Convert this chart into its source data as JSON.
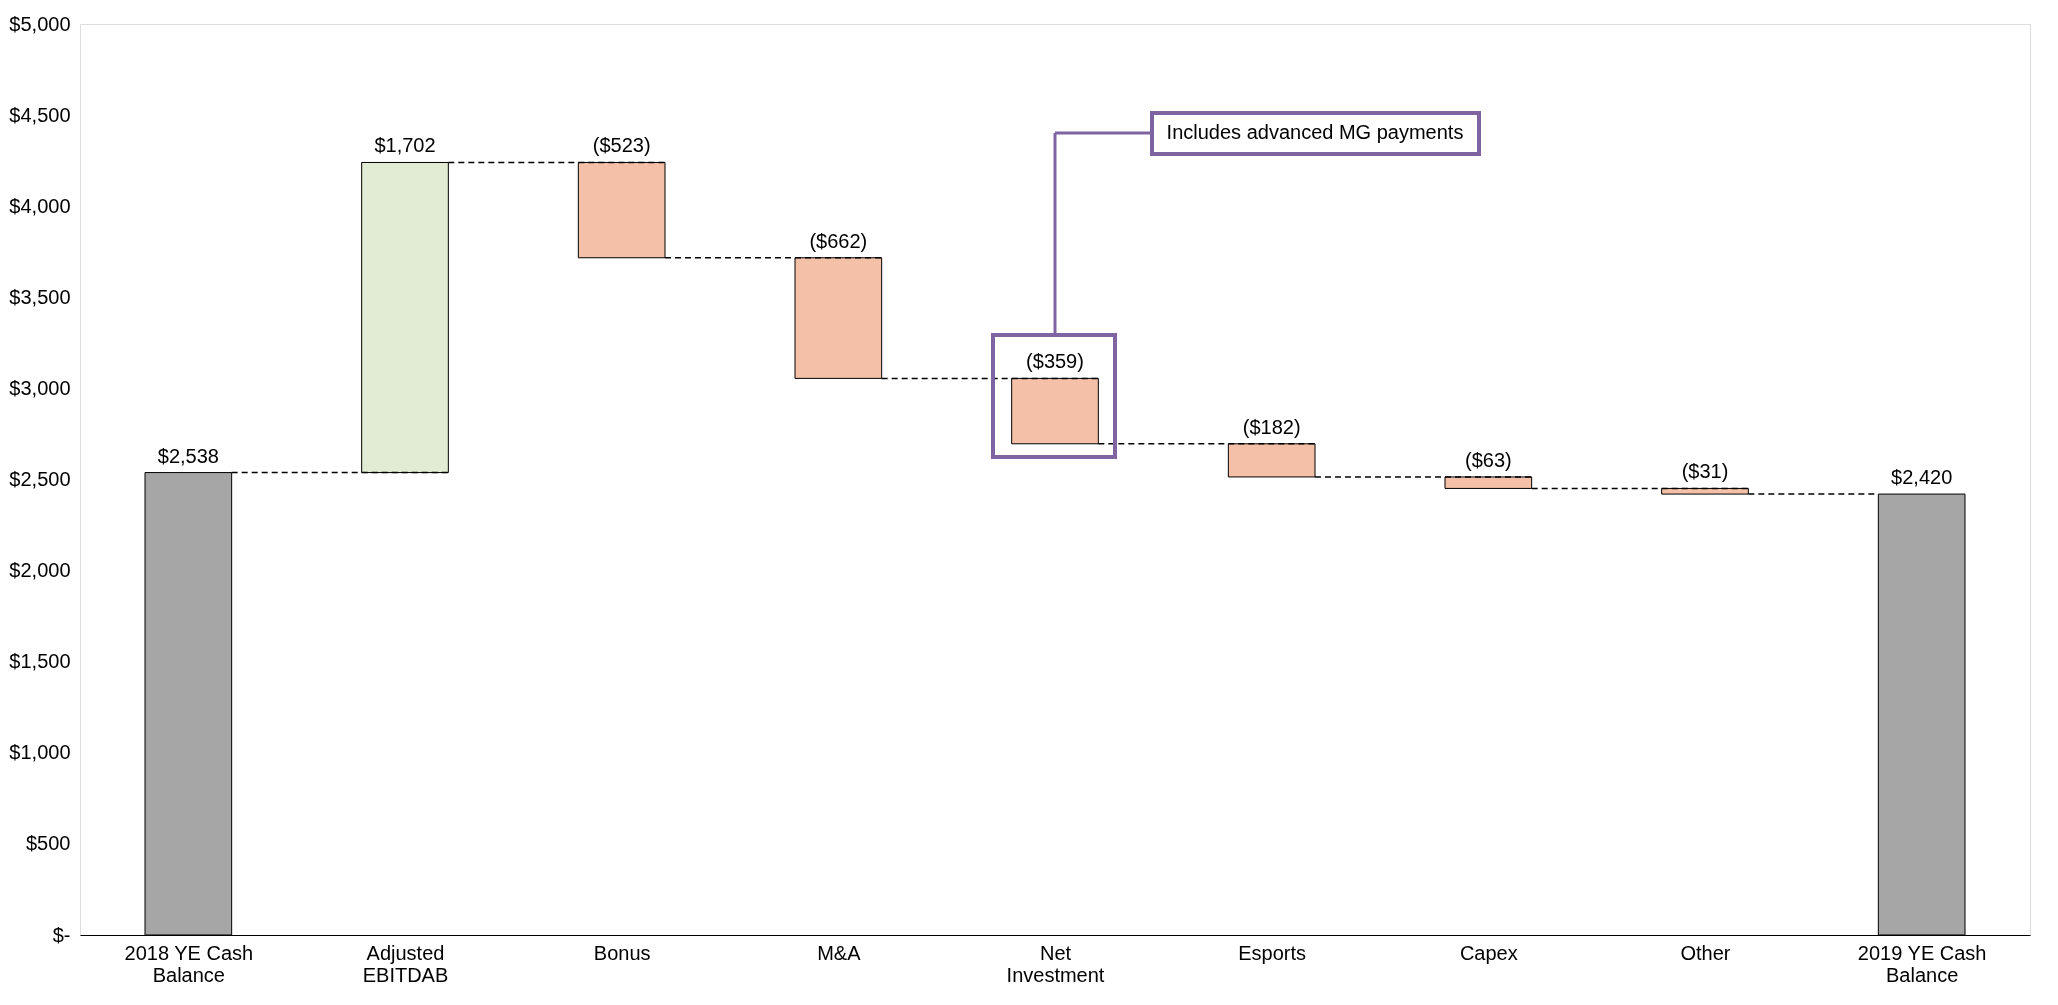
{
  "chart_data": {
    "type": "bar",
    "categories": [
      "2018 YE Cash Balance",
      "Adjusted EBITDAB",
      "Bonus",
      "M&A",
      "Net Investment",
      "Esports",
      "Capex",
      "Other",
      "2019 YE Cash Balance"
    ],
    "values": [
      2538,
      1702,
      -523,
      -662,
      -359,
      -182,
      -63,
      -31,
      2420
    ],
    "base": [
      0,
      2538,
      4240,
      3717,
      3055,
      2696,
      2514,
      2451,
      0
    ],
    "colors": [
      "#a6a6a6",
      "#e2ebd3",
      "#f4c1a8",
      "#f4c1a8",
      "#f4c1a8",
      "#f4c1a8",
      "#f4c1a8",
      "#f4c1a8",
      "#a6a6a6"
    ],
    "value_labels": [
      "$2,538",
      "$1,702",
      "($523)",
      "($662)",
      "($359)",
      "($182)",
      "($63)",
      "($31)",
      "$2,420"
    ],
    "ylim": [
      0,
      5000
    ],
    "yticks": [
      {
        "value": 0,
        "label": "$-"
      },
      {
        "value": 500,
        "label": "$500"
      },
      {
        "value": 1000,
        "label": "$1,000"
      },
      {
        "value": 1500,
        "label": "$1,500"
      },
      {
        "value": 2000,
        "label": "$2,000"
      },
      {
        "value": 2500,
        "label": "$2,500"
      },
      {
        "value": 3000,
        "label": "$3,000"
      },
      {
        "value": 3500,
        "label": "$3,500"
      },
      {
        "value": 4000,
        "label": "$4,000"
      },
      {
        "value": 4500,
        "label": "$4,500"
      },
      {
        "value": 5000,
        "label": "$5,000"
      }
    ],
    "grid": false,
    "annotations": [
      "Includes advanced MG payments"
    ]
  }
}
